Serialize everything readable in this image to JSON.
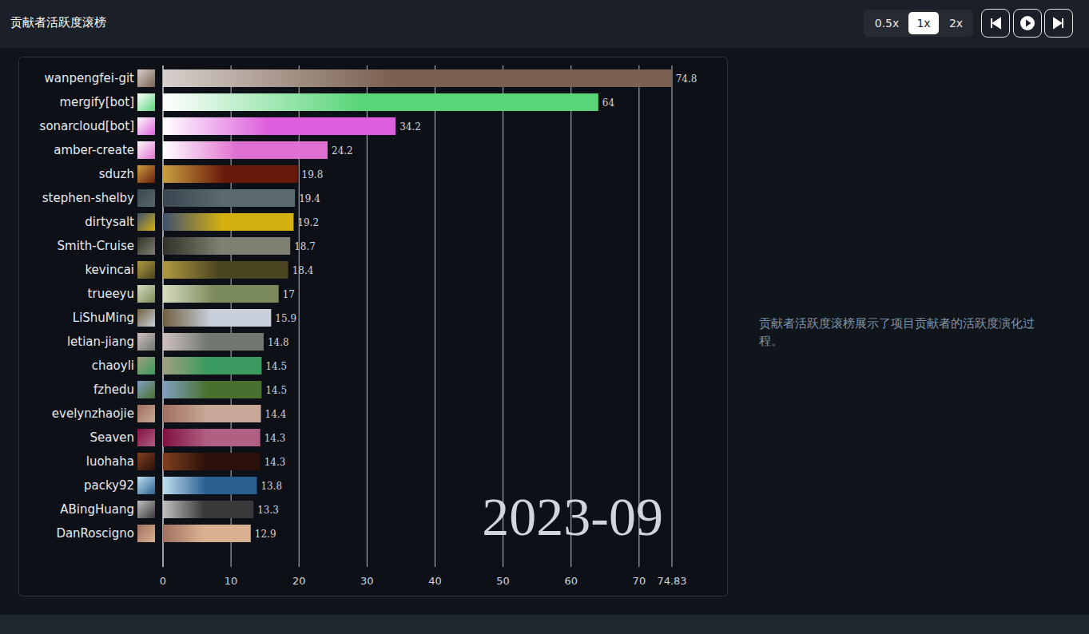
{
  "chart_data": {
    "type": "bar",
    "orientation": "horizontal",
    "title": "贡献者活跃度滚榜",
    "subtitle": "贡献者活跃度滚榜展示了项目贡献者的活跃度演化过程。",
    "annotations": [
      "2023-09"
    ],
    "speeds": [
      "0.5x",
      "1x",
      "2x"
    ],
    "speed_selected": "1x",
    "categories": [
      "wanpengfei-git",
      "mergify[bot]",
      "sonarcloud[bot]",
      "amber-create",
      "sduzh",
      "stephen-shelby",
      "dirtysalt",
      "Smith-Cruise",
      "kevincai",
      "trueeyu",
      "LiShuMing",
      "letian-jiang",
      "chaoyli",
      "fzhedu",
      "evelynzhaojie",
      "Seaven",
      "luohaha",
      "packy92",
      "ABingHuang",
      "DanRoscigno"
    ],
    "values": [
      74.8,
      64,
      34.2,
      24.2,
      19.8,
      19.4,
      19.2,
      18.7,
      18.4,
      17,
      15.9,
      14.8,
      14.5,
      14.5,
      14.4,
      14.3,
      14.3,
      13.8,
      13.3,
      12.9
    ],
    "colors": [
      "#7a6050",
      "#5bd57a",
      "#dd5fdd",
      "#e070d0",
      "#6a1a0a",
      "#5a6a70",
      "#d4b010",
      "#808070",
      "#4a4520",
      "#7a8a5a",
      "#c8d0dc",
      "#707870",
      "#3a9a60",
      "#4a7030",
      "#c8a898",
      "#b06080",
      "#2a1008",
      "#2a6090",
      "#3a3a3a",
      "#d8b090"
    ],
    "xlim": [
      0,
      74.83
    ],
    "xticks": [
      0,
      10,
      20,
      30,
      40,
      50,
      60,
      70,
      74.83
    ],
    "grid": true,
    "data_labels": true
  }
}
